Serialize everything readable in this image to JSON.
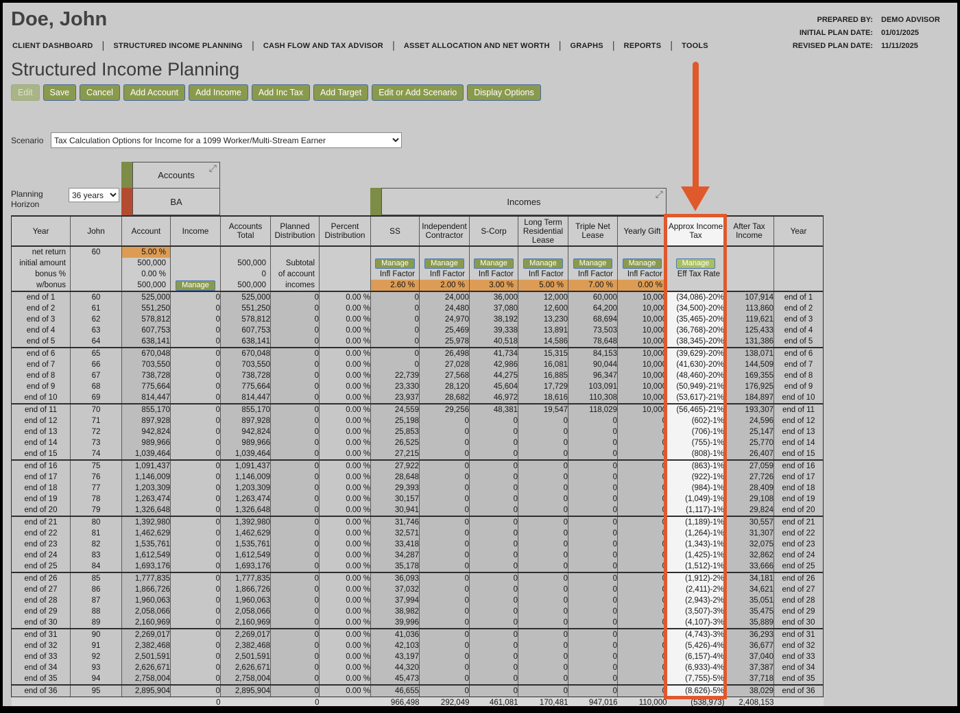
{
  "header": {
    "client_name": "Doe, John",
    "prepared_by_label": "PREPARED BY:",
    "prepared_by": "DEMO ADVISOR",
    "initial_plan_date_label": "INITIAL PLAN DATE:",
    "initial_plan_date": "01/01/2025",
    "revised_plan_date_label": "REVISED PLAN DATE:",
    "revised_plan_date": "11/11/2025",
    "nav": [
      "CLIENT DASHBOARD",
      "STRUCTURED INCOME PLANNING",
      "CASH FLOW AND TAX ADVISOR",
      "ASSET ALLOCATION AND NET WORTH",
      "GRAPHS",
      "REPORTS",
      "TOOLS"
    ]
  },
  "page_title": "Structured Income Planning",
  "toolbar": {
    "buttons": [
      {
        "label": "Edit",
        "disabled": true
      },
      {
        "label": "Save"
      },
      {
        "label": "Cancel"
      },
      {
        "label": "Add Account"
      },
      {
        "label": "Add Income"
      },
      {
        "label": "Add Inc Tax"
      },
      {
        "label": "Add Target"
      },
      {
        "label": "Edit or Add Scenario"
      },
      {
        "label": "Display Options"
      }
    ]
  },
  "scenario": {
    "label": "Scenario",
    "selected": "Tax Calculation Options for Income for a 1099 Worker/Multi-Stream Earner"
  },
  "planning_horizon": {
    "label": "Planning Horizon",
    "selected": "36 years"
  },
  "groups": {
    "accounts_label": "Accounts",
    "accounts_sub": "BA",
    "incomes_label": "Incomes",
    "collapse_icon": "⤢"
  },
  "colors": {
    "accent_orange": "#E0592B",
    "button_green": "#8A9A4D",
    "manage_light_green": "#A9BE60",
    "tab_green": "#7D8C46",
    "tab_red": "#B44B31",
    "cell_orange": "#DD9C55"
  },
  "table": {
    "columns": [
      "Year",
      "John",
      "Account",
      "Income",
      "Accounts Total",
      "Planned Distribution",
      "Percent Distribution",
      "SS",
      "Independent Contractor",
      "S-Corp",
      "Long Term Residential Lease",
      "Triple Net Lease",
      "Yearly Gift",
      "Approx Income Tax",
      "After Tax Income",
      "Year"
    ],
    "manage_label": "Manage",
    "subheader_grid": [
      [
        {
          "t": "net return"
        },
        {
          "t": "60"
        },
        {
          "t": "5.00 %",
          "o": true
        },
        {},
        {},
        {},
        {},
        {},
        {},
        {},
        {},
        {},
        {},
        {},
        {},
        {}
      ],
      [
        {
          "t": "initial amount"
        },
        {},
        {
          "t": "500,000"
        },
        {},
        {
          "t": "500,000"
        },
        {
          "t": "Subtotal"
        },
        {},
        {
          "m": true
        },
        {
          "m": true
        },
        {
          "m": true
        },
        {
          "m": true
        },
        {
          "m": true
        },
        {
          "m": true
        },
        {
          "m": true,
          "hl": true
        },
        {},
        {}
      ],
      [
        {
          "t": "bonus %"
        },
        {},
        {
          "t": "0.00 %"
        },
        {},
        {
          "t": "0"
        },
        {
          "t": "of account"
        },
        {},
        {
          "t": "Infl Factor"
        },
        {
          "t": "Infl Factor"
        },
        {
          "t": "Infl Factor"
        },
        {
          "t": "Infl Factor"
        },
        {
          "t": "Infl Factor"
        },
        {
          "t": "Infl Factor"
        },
        {
          "t": "Eff Tax Rate"
        },
        {},
        {}
      ],
      [
        {
          "t": "w/bonus"
        },
        {},
        {
          "t": "500,000"
        },
        {
          "m": true
        },
        {
          "t": "500,000"
        },
        {
          "t": "incomes"
        },
        {},
        {
          "t": "2.60 %",
          "o": true
        },
        {
          "t": "2.00 %",
          "o": true
        },
        {
          "t": "3.00 %",
          "o": true
        },
        {
          "t": "5.00 %",
          "o": true
        },
        {
          "t": "7.00 %",
          "o": true
        },
        {
          "t": "0.00 %",
          "o": true
        },
        {},
        {},
        {}
      ]
    ],
    "rows": [
      [
        "end of 1",
        "60",
        "525,000",
        "0",
        "525,000",
        "0",
        "0.00 %",
        "0",
        "24,000",
        "36,000",
        "12,000",
        "60,000",
        "10,000",
        "(34,086)-20%",
        "107,914",
        "end of 1"
      ],
      [
        "end of 2",
        "61",
        "551,250",
        "0",
        "551,250",
        "0",
        "0.00 %",
        "0",
        "24,480",
        "37,080",
        "12,600",
        "64,200",
        "10,000",
        "(34,500)-20%",
        "113,860",
        "end of 2"
      ],
      [
        "end of 3",
        "62",
        "578,812",
        "0",
        "578,812",
        "0",
        "0.00 %",
        "0",
        "24,970",
        "38,192",
        "13,230",
        "68,694",
        "10,000",
        "(35,465)-20%",
        "119,621",
        "end of 3"
      ],
      [
        "end of 4",
        "63",
        "607,753",
        "0",
        "607,753",
        "0",
        "0.00 %",
        "0",
        "25,469",
        "39,338",
        "13,891",
        "73,503",
        "10,000",
        "(36,768)-20%",
        "125,433",
        "end of 4"
      ],
      [
        "end of 5",
        "64",
        "638,141",
        "0",
        "638,141",
        "0",
        "0.00 %",
        "0",
        "25,978",
        "40,518",
        "14,586",
        "78,648",
        "10,000",
        "(38,345)-20%",
        "131,386",
        "end of 5"
      ],
      [
        "end of 6",
        "65",
        "670,048",
        "0",
        "670,048",
        "0",
        "0.00 %",
        "0",
        "26,498",
        "41,734",
        "15,315",
        "84,153",
        "10,000",
        "(39,629)-20%",
        "138,071",
        "end of 6"
      ],
      [
        "end of 7",
        "66",
        "703,550",
        "0",
        "703,550",
        "0",
        "0.00 %",
        "0",
        "27,028",
        "42,986",
        "16,081",
        "90,044",
        "10,000",
        "(41,630)-20%",
        "144,509",
        "end of 7"
      ],
      [
        "end of 8",
        "67",
        "738,728",
        "0",
        "738,728",
        "0",
        "0.00 %",
        "22,739",
        "27,568",
        "44,275",
        "16,885",
        "96,347",
        "10,000",
        "(48,460)-20%",
        "169,355",
        "end of 8"
      ],
      [
        "end of 9",
        "68",
        "775,664",
        "0",
        "775,664",
        "0",
        "0.00 %",
        "23,330",
        "28,120",
        "45,604",
        "17,729",
        "103,091",
        "10,000",
        "(50,949)-21%",
        "176,925",
        "end of 9"
      ],
      [
        "end of 10",
        "69",
        "814,447",
        "0",
        "814,447",
        "0",
        "0.00 %",
        "23,937",
        "28,682",
        "46,972",
        "18,616",
        "110,308",
        "10,000",
        "(53,617)-21%",
        "184,897",
        "end of 10"
      ],
      [
        "end of 11",
        "70",
        "855,170",
        "0",
        "855,170",
        "0",
        "0.00 %",
        "24,559",
        "29,256",
        "48,381",
        "19,547",
        "118,029",
        "10,000",
        "(56,465)-21%",
        "193,307",
        "end of 11"
      ],
      [
        "end of 12",
        "71",
        "897,928",
        "0",
        "897,928",
        "0",
        "0.00 %",
        "25,198",
        "0",
        "0",
        "0",
        "0",
        "0",
        "(602)-1%",
        "24,596",
        "end of 12"
      ],
      [
        "end of 13",
        "72",
        "942,824",
        "0",
        "942,824",
        "0",
        "0.00 %",
        "25,853",
        "0",
        "0",
        "0",
        "0",
        "0",
        "(706)-1%",
        "25,147",
        "end of 13"
      ],
      [
        "end of 14",
        "73",
        "989,966",
        "0",
        "989,966",
        "0",
        "0.00 %",
        "26,525",
        "0",
        "0",
        "0",
        "0",
        "0",
        "(755)-1%",
        "25,770",
        "end of 14"
      ],
      [
        "end of 15",
        "74",
        "1,039,464",
        "0",
        "1,039,464",
        "0",
        "0.00 %",
        "27,215",
        "0",
        "0",
        "0",
        "0",
        "0",
        "(808)-1%",
        "26,407",
        "end of 15"
      ],
      [
        "end of 16",
        "75",
        "1,091,437",
        "0",
        "1,091,437",
        "0",
        "0.00 %",
        "27,922",
        "0",
        "0",
        "0",
        "0",
        "0",
        "(863)-1%",
        "27,059",
        "end of 16"
      ],
      [
        "end of 17",
        "76",
        "1,146,009",
        "0",
        "1,146,009",
        "0",
        "0.00 %",
        "28,648",
        "0",
        "0",
        "0",
        "0",
        "0",
        "(922)-1%",
        "27,726",
        "end of 17"
      ],
      [
        "end of 18",
        "77",
        "1,203,309",
        "0",
        "1,203,309",
        "0",
        "0.00 %",
        "29,393",
        "0",
        "0",
        "0",
        "0",
        "0",
        "(984)-1%",
        "28,409",
        "end of 18"
      ],
      [
        "end of 19",
        "78",
        "1,263,474",
        "0",
        "1,263,474",
        "0",
        "0.00 %",
        "30,157",
        "0",
        "0",
        "0",
        "0",
        "0",
        "(1,049)-1%",
        "29,108",
        "end of 19"
      ],
      [
        "end of 20",
        "79",
        "1,326,648",
        "0",
        "1,326,648",
        "0",
        "0.00 %",
        "30,941",
        "0",
        "0",
        "0",
        "0",
        "0",
        "(1,117)-1%",
        "29,824",
        "end of 20"
      ],
      [
        "end of 21",
        "80",
        "1,392,980",
        "0",
        "1,392,980",
        "0",
        "0.00 %",
        "31,746",
        "0",
        "0",
        "0",
        "0",
        "0",
        "(1,189)-1%",
        "30,557",
        "end of 21"
      ],
      [
        "end of 22",
        "81",
        "1,462,629",
        "0",
        "1,462,629",
        "0",
        "0.00 %",
        "32,571",
        "0",
        "0",
        "0",
        "0",
        "0",
        "(1,264)-1%",
        "31,307",
        "end of 22"
      ],
      [
        "end of 23",
        "82",
        "1,535,761",
        "0",
        "1,535,761",
        "0",
        "0.00 %",
        "33,418",
        "0",
        "0",
        "0",
        "0",
        "0",
        "(1,343)-1%",
        "32,075",
        "end of 23"
      ],
      [
        "end of 24",
        "83",
        "1,612,549",
        "0",
        "1,612,549",
        "0",
        "0.00 %",
        "34,287",
        "0",
        "0",
        "0",
        "0",
        "0",
        "(1,425)-1%",
        "32,862",
        "end of 24"
      ],
      [
        "end of 25",
        "84",
        "1,693,176",
        "0",
        "1,693,176",
        "0",
        "0.00 %",
        "35,178",
        "0",
        "0",
        "0",
        "0",
        "0",
        "(1,512)-1%",
        "33,666",
        "end of 25"
      ],
      [
        "end of 26",
        "85",
        "1,777,835",
        "0",
        "1,777,835",
        "0",
        "0.00 %",
        "36,093",
        "0",
        "0",
        "0",
        "0",
        "0",
        "(1,912)-2%",
        "34,181",
        "end of 26"
      ],
      [
        "end of 27",
        "86",
        "1,866,726",
        "0",
        "1,866,726",
        "0",
        "0.00 %",
        "37,032",
        "0",
        "0",
        "0",
        "0",
        "0",
        "(2,411)-2%",
        "34,621",
        "end of 27"
      ],
      [
        "end of 28",
        "87",
        "1,960,063",
        "0",
        "1,960,063",
        "0",
        "0.00 %",
        "37,994",
        "0",
        "0",
        "0",
        "0",
        "0",
        "(2,943)-2%",
        "35,051",
        "end of 28"
      ],
      [
        "end of 29",
        "88",
        "2,058,066",
        "0",
        "2,058,066",
        "0",
        "0.00 %",
        "38,982",
        "0",
        "0",
        "0",
        "0",
        "0",
        "(3,507)-3%",
        "35,475",
        "end of 29"
      ],
      [
        "end of 30",
        "89",
        "2,160,969",
        "0",
        "2,160,969",
        "0",
        "0.00 %",
        "39,996",
        "0",
        "0",
        "0",
        "0",
        "0",
        "(4,107)-3%",
        "35,889",
        "end of 30"
      ],
      [
        "end of 31",
        "90",
        "2,269,017",
        "0",
        "2,269,017",
        "0",
        "0.00 %",
        "41,036",
        "0",
        "0",
        "0",
        "0",
        "0",
        "(4,743)-3%",
        "36,293",
        "end of 31"
      ],
      [
        "end of 32",
        "91",
        "2,382,468",
        "0",
        "2,382,468",
        "0",
        "0.00 %",
        "42,103",
        "0",
        "0",
        "0",
        "0",
        "0",
        "(5,426)-4%",
        "36,677",
        "end of 32"
      ],
      [
        "end of 33",
        "92",
        "2,501,591",
        "0",
        "2,501,591",
        "0",
        "0.00 %",
        "43,197",
        "0",
        "0",
        "0",
        "0",
        "0",
        "(6,157)-4%",
        "37,040",
        "end of 33"
      ],
      [
        "end of 34",
        "93",
        "2,626,671",
        "0",
        "2,626,671",
        "0",
        "0.00 %",
        "44,320",
        "0",
        "0",
        "0",
        "0",
        "0",
        "(6,933)-4%",
        "37,387",
        "end of 34"
      ],
      [
        "end of 35",
        "94",
        "2,758,004",
        "0",
        "2,758,004",
        "0",
        "0.00 %",
        "45,473",
        "0",
        "0",
        "0",
        "0",
        "0",
        "(7,755)-5%",
        "37,718",
        "end of 35"
      ],
      [
        "end of 36",
        "95",
        "2,895,904",
        "0",
        "2,895,904",
        "0",
        "0.00 %",
        "46,655",
        "0",
        "0",
        "0",
        "0",
        "0",
        "(8,626)-5%",
        "38,029",
        "end of 36"
      ]
    ],
    "totals_row": [
      "",
      "",
      "",
      "0",
      "",
      "0",
      "",
      "966,498",
      "292,049",
      "461,081",
      "170,481",
      "947,016",
      "110,000",
      "(538,973)",
      "2,408,153",
      ""
    ]
  }
}
